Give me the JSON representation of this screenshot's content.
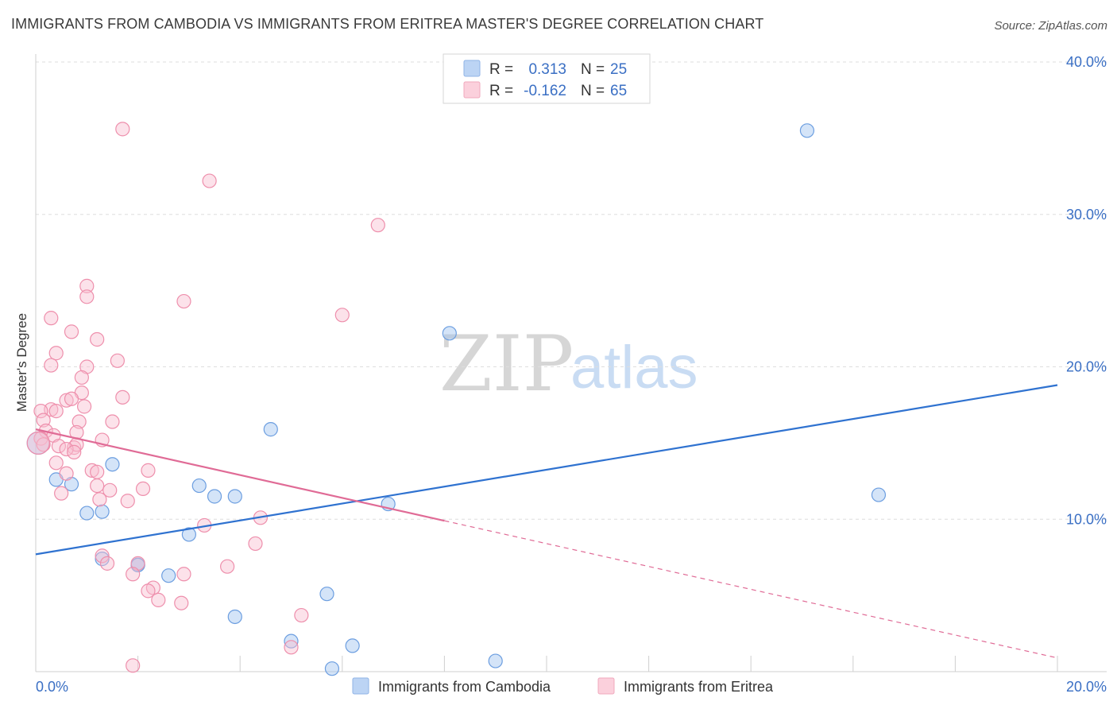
{
  "header": {
    "title": "IMMIGRANTS FROM CAMBODIA VS IMMIGRANTS FROM ERITREA MASTER'S DEGREE CORRELATION CHART",
    "source": "Source: ZipAtlas.com"
  },
  "watermark": {
    "zip": "ZIP",
    "atlas": "atlas"
  },
  "legend": {
    "r_label": "R =",
    "n_label": "N =",
    "rows": [
      {
        "series": "Immigrants from Cambodia",
        "r": "0.313",
        "n": "25",
        "color": "#6c9ee0"
      },
      {
        "series": "Immigrants from Eritrea",
        "r": "-0.162",
        "n": "65",
        "color": "#ee8fac"
      }
    ]
  },
  "chart_data": {
    "type": "scatter",
    "title": "IMMIGRANTS FROM CAMBODIA VS IMMIGRANTS FROM ERITREA MASTER'S DEGREE CORRELATION CHART",
    "xlabel": "",
    "ylabel": "Master's Degree",
    "xlim": [
      0,
      20
    ],
    "ylim": [
      0,
      40
    ],
    "x_ticks": [
      "0.0%",
      "20.0%"
    ],
    "y_ticks": [
      {
        "value": 10,
        "label": "10.0%"
      },
      {
        "value": 20,
        "label": "20.0%"
      },
      {
        "value": 30,
        "label": "30.0%"
      },
      {
        "value": 40,
        "label": "40.0%"
      }
    ],
    "grid": true,
    "legend_position": "top-center",
    "series": [
      {
        "name": "Immigrants from Cambodia",
        "color": "#6c9ee0",
        "points": [
          [
            0.05,
            15.0
          ],
          [
            0.4,
            12.6
          ],
          [
            0.7,
            12.3
          ],
          [
            1.0,
            10.4
          ],
          [
            1.3,
            10.5
          ],
          [
            1.5,
            13.6
          ],
          [
            1.3,
            7.4
          ],
          [
            2.0,
            7.0
          ],
          [
            2.6,
            6.3
          ],
          [
            3.0,
            9.0
          ],
          [
            3.2,
            12.2
          ],
          [
            3.5,
            11.5
          ],
          [
            3.9,
            11.5
          ],
          [
            3.9,
            3.6
          ],
          [
            4.6,
            15.9
          ],
          [
            5.0,
            2.0
          ],
          [
            5.7,
            5.1
          ],
          [
            5.8,
            0.2
          ],
          [
            6.2,
            1.7
          ],
          [
            6.9,
            11.0
          ],
          [
            8.1,
            22.2
          ],
          [
            9.0,
            0.7
          ],
          [
            15.1,
            35.5
          ],
          [
            16.5,
            11.6
          ],
          [
            2.0,
            7.0
          ]
        ],
        "trend": {
          "x": [
            0,
            20
          ],
          "y": [
            7.7,
            18.8
          ],
          "dashed_from": null
        }
      },
      {
        "name": "Immigrants from Eritrea",
        "color": "#ee8fac",
        "points": [
          [
            1.7,
            35.6
          ],
          [
            3.4,
            32.2
          ],
          [
            6.7,
            29.3
          ],
          [
            1.0,
            25.3
          ],
          [
            1.0,
            24.6
          ],
          [
            2.9,
            24.3
          ],
          [
            6.0,
            23.4
          ],
          [
            0.3,
            23.2
          ],
          [
            0.7,
            22.3
          ],
          [
            1.2,
            21.8
          ],
          [
            0.4,
            20.9
          ],
          [
            1.6,
            20.4
          ],
          [
            0.3,
            20.1
          ],
          [
            1.0,
            20.0
          ],
          [
            0.9,
            19.3
          ],
          [
            0.9,
            18.3
          ],
          [
            1.7,
            18.0
          ],
          [
            0.6,
            17.8
          ],
          [
            0.7,
            17.9
          ],
          [
            0.95,
            17.4
          ],
          [
            0.3,
            17.2
          ],
          [
            0.1,
            17.1
          ],
          [
            0.4,
            17.1
          ],
          [
            0.15,
            16.5
          ],
          [
            0.85,
            16.4
          ],
          [
            1.5,
            16.4
          ],
          [
            0.2,
            15.8
          ],
          [
            0.8,
            15.7
          ],
          [
            0.35,
            15.5
          ],
          [
            0.1,
            15.3
          ],
          [
            1.3,
            15.2
          ],
          [
            0.15,
            14.9
          ],
          [
            0.45,
            14.8
          ],
          [
            0.75,
            14.7
          ],
          [
            0.8,
            14.9
          ],
          [
            0.6,
            14.6
          ],
          [
            0.75,
            14.4
          ],
          [
            0.4,
            13.7
          ],
          [
            1.1,
            13.2
          ],
          [
            2.2,
            13.2
          ],
          [
            1.2,
            13.1
          ],
          [
            0.6,
            13.0
          ],
          [
            1.2,
            12.2
          ],
          [
            2.1,
            12.0
          ],
          [
            1.45,
            11.9
          ],
          [
            0.5,
            11.7
          ],
          [
            1.25,
            11.3
          ],
          [
            1.8,
            11.2
          ],
          [
            4.4,
            10.1
          ],
          [
            3.3,
            9.6
          ],
          [
            4.3,
            8.4
          ],
          [
            1.3,
            7.6
          ],
          [
            1.4,
            7.1
          ],
          [
            2.0,
            7.1
          ],
          [
            3.75,
            6.9
          ],
          [
            2.9,
            6.4
          ],
          [
            1.9,
            6.4
          ],
          [
            2.3,
            5.5
          ],
          [
            2.2,
            5.3
          ],
          [
            2.4,
            4.7
          ],
          [
            2.85,
            4.5
          ],
          [
            5.2,
            3.7
          ],
          [
            5.0,
            1.6
          ],
          [
            1.9,
            0.4
          ],
          [
            0.05,
            15.0
          ]
        ],
        "trend": {
          "x": [
            0,
            20
          ],
          "y": [
            15.9,
            0.9
          ],
          "dashed_from": 8.0
        }
      }
    ]
  }
}
